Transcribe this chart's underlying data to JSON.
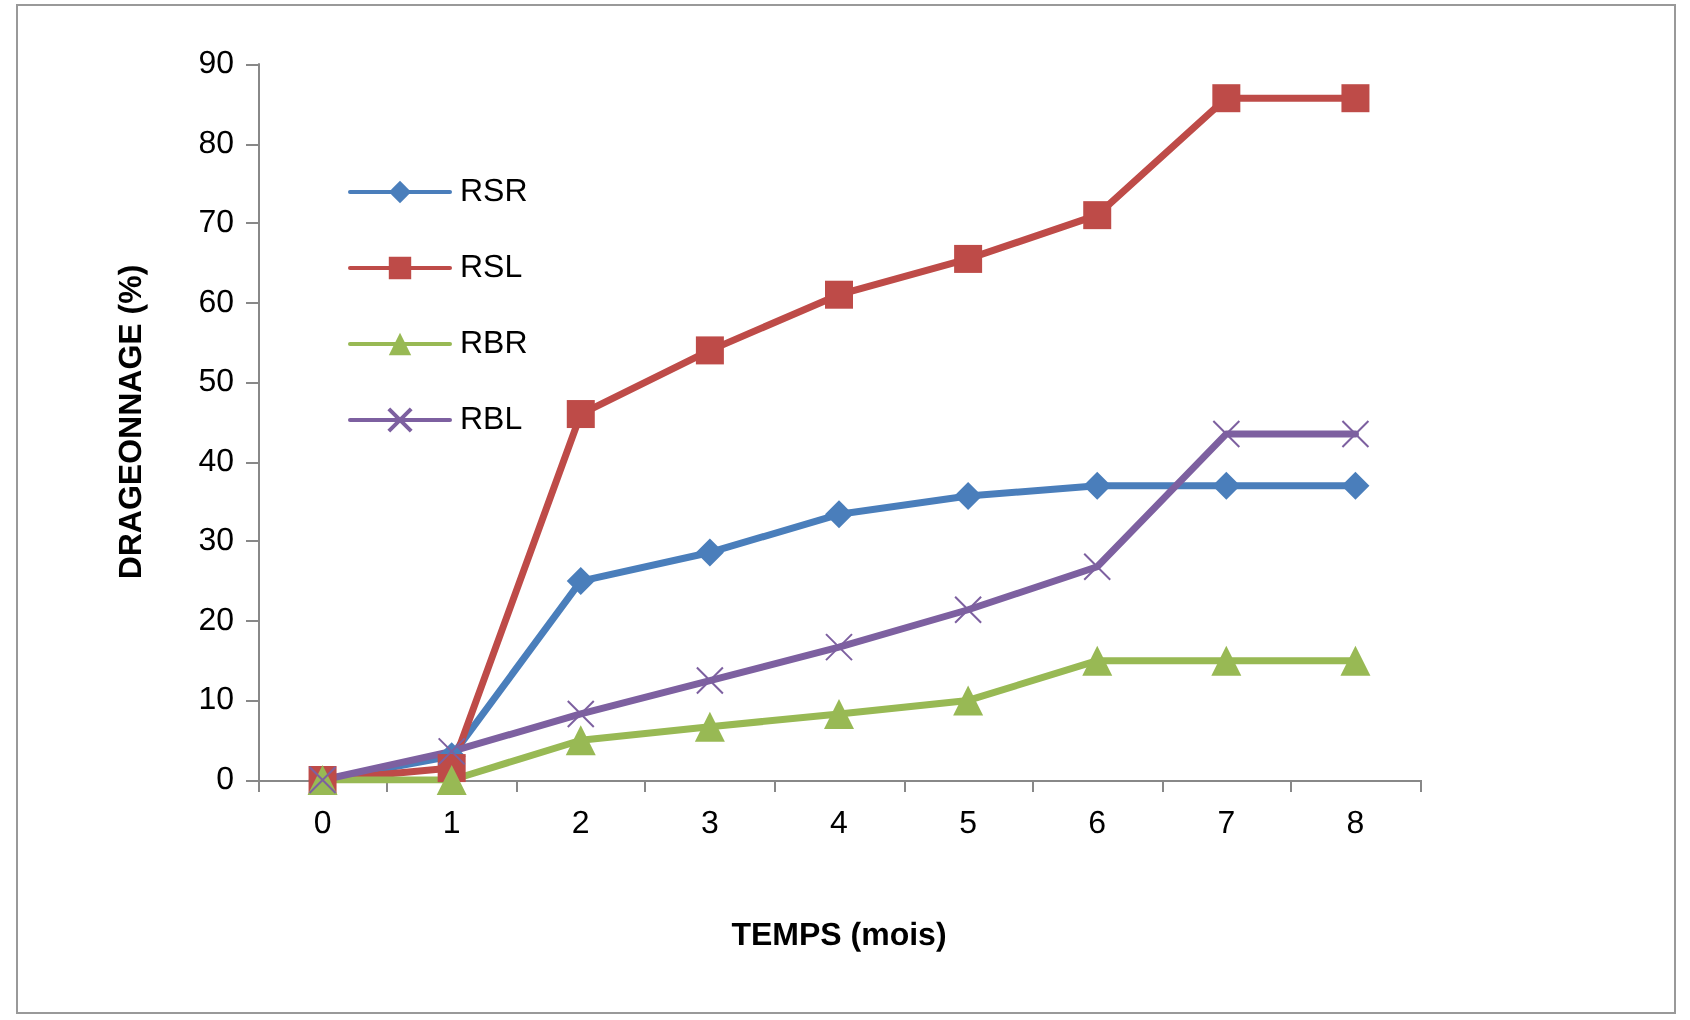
{
  "chart_data": {
    "type": "line",
    "xlabel": "TEMPS (mois)",
    "ylabel": "DRAGEONNAGE (%)",
    "categories": [
      "0",
      "1",
      "2",
      "3",
      "4",
      "5",
      "6",
      "7",
      "8"
    ],
    "ylim": [
      0,
      90
    ],
    "yticks": [
      0,
      10,
      20,
      30,
      40,
      50,
      60,
      70,
      80,
      90
    ],
    "grid": false,
    "legend": "top left",
    "line_style": "solid",
    "series": [
      {
        "name": "RSR",
        "color": "#4a7ebb",
        "marker": "diamond",
        "values": [
          0,
          3,
          25,
          28.6,
          33.4,
          35.7,
          37,
          37,
          37
        ]
      },
      {
        "name": "RSL",
        "color": "#be4b48",
        "marker": "square",
        "values": [
          0,
          1.5,
          46,
          54,
          61,
          65.5,
          71,
          85.7,
          85.7
        ]
      },
      {
        "name": "RBR",
        "color": "#98b954",
        "marker": "triangle",
        "values": [
          0,
          0,
          5,
          6.7,
          8.3,
          10,
          15,
          15,
          15
        ]
      },
      {
        "name": "RBL",
        "color": "#7d60a0",
        "marker": "cross",
        "values": [
          0,
          3.6,
          8.3,
          12.5,
          16.7,
          21.4,
          26.8,
          43.5,
          43.5
        ]
      }
    ]
  }
}
